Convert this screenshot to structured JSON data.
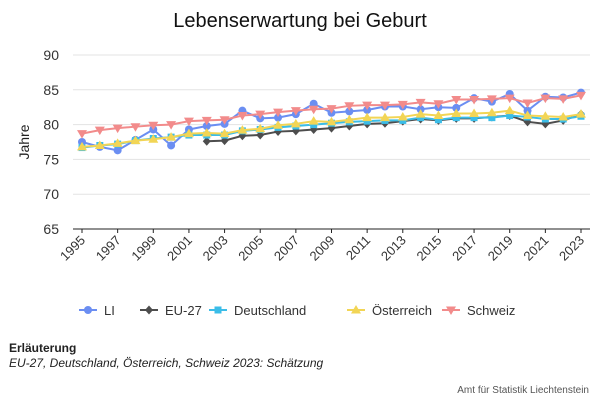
{
  "chart_data": {
    "type": "line",
    "title": "Lebenserwartung bei Geburt",
    "ylabel": "Jahre",
    "xlabel": "",
    "ylim": [
      65,
      90
    ],
    "yticks": [
      65,
      70,
      75,
      80,
      85,
      90
    ],
    "grid": true,
    "legend_position": "bottom",
    "x": [
      1995,
      1996,
      1997,
      1998,
      1999,
      2000,
      2001,
      2002,
      2003,
      2004,
      2005,
      2006,
      2007,
      2008,
      2009,
      2010,
      2011,
      2012,
      2013,
      2014,
      2015,
      2016,
      2017,
      2018,
      2019,
      2020,
      2021,
      2022,
      2023
    ],
    "xtick_labels": [
      "1995",
      "1997",
      "1999",
      "2001",
      "2003",
      "2005",
      "2007",
      "2009",
      "2011",
      "2013",
      "2015",
      "2017",
      "2019",
      "2021",
      "2023"
    ],
    "series": [
      {
        "name": "LI",
        "color": "#6b8ef2",
        "marker": "circle",
        "values": [
          77.5,
          76.8,
          76.3,
          77.8,
          79.3,
          77.0,
          79.3,
          79.8,
          80.1,
          82.0,
          80.9,
          81.0,
          81.5,
          83.0,
          81.7,
          81.9,
          82.1,
          82.6,
          82.6,
          82.2,
          82.5,
          82.4,
          83.8,
          83.3,
          84.4,
          82.0,
          84.0,
          83.9,
          84.6
        ]
      },
      {
        "name": "EU-27",
        "color": "#4d4d4d",
        "marker": "diamond",
        "values": [
          null,
          null,
          null,
          null,
          null,
          null,
          null,
          77.6,
          77.7,
          78.4,
          78.5,
          79.0,
          79.1,
          79.3,
          79.5,
          79.8,
          80.1,
          80.2,
          80.5,
          80.8,
          80.6,
          80.9,
          80.9,
          81.1,
          81.3,
          80.4,
          80.1,
          80.6,
          81.5
        ]
      },
      {
        "name": "Deutschland",
        "color": "#3bbde8",
        "marker": "square",
        "values": [
          76.7,
          77.0,
          77.2,
          77.7,
          78.0,
          78.2,
          78.5,
          78.5,
          78.5,
          79.1,
          79.3,
          79.6,
          79.8,
          80.0,
          80.2,
          80.4,
          80.5,
          80.6,
          80.6,
          81.0,
          80.7,
          81.0,
          81.0,
          81.0,
          81.3,
          81.1,
          80.8,
          80.8,
          81.2
        ]
      },
      {
        "name": "Österreich",
        "color": "#f2d555",
        "marker": "triangle",
        "values": [
          76.8,
          77.0,
          77.3,
          77.7,
          77.9,
          78.2,
          78.7,
          78.8,
          78.7,
          79.2,
          79.4,
          79.9,
          80.1,
          80.5,
          80.4,
          80.7,
          81.0,
          81.0,
          81.1,
          81.5,
          81.3,
          81.6,
          81.6,
          81.7,
          82.0,
          81.3,
          81.2,
          81.1,
          81.5
        ]
      },
      {
        "name": "Schweiz",
        "color": "#f28b8b",
        "marker": "triangle-down",
        "values": [
          78.7,
          79.2,
          79.5,
          79.7,
          79.9,
          80.0,
          80.5,
          80.6,
          80.7,
          81.3,
          81.5,
          81.8,
          82.0,
          82.2,
          82.3,
          82.7,
          82.8,
          82.8,
          82.9,
          83.2,
          83.0,
          83.6,
          83.6,
          83.7,
          83.8,
          83.1,
          83.8,
          83.7,
          84.2
        ]
      }
    ]
  },
  "note": {
    "title": "Erläuterung",
    "text": "EU-27, Deutschland, Österreich, Schweiz 2023: Schätzung"
  },
  "source": "Amt für Statistik Liechtenstein"
}
